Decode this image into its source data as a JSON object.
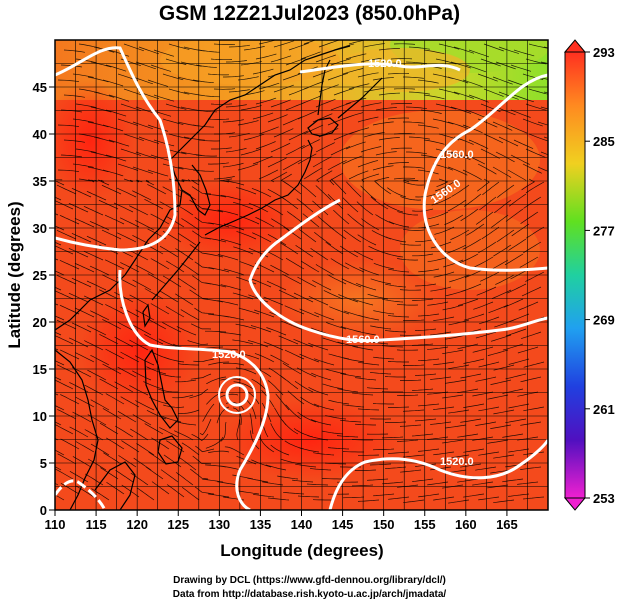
{
  "title": "GSM 12Z21Jul2023 (850.0hPa)",
  "x_axis": {
    "label": "Longitude (degrees)",
    "ticks": [
      "110",
      "115",
      "120",
      "125",
      "130",
      "135",
      "140",
      "145",
      "150",
      "155",
      "160",
      "165"
    ],
    "range": [
      110,
      170
    ]
  },
  "y_axis": {
    "label": "Latitude  (degrees)",
    "ticks": [
      "0",
      "5",
      "10",
      "15",
      "20",
      "25",
      "30",
      "35",
      "40",
      "45"
    ],
    "range": [
      0,
      50
    ]
  },
  "colorbar": {
    "ticks": [
      "293",
      "285",
      "277",
      "269",
      "261",
      "253"
    ],
    "range": [
      253,
      293
    ]
  },
  "contours": {
    "labels": [
      "1520.0",
      "1560.0",
      "1560.0",
      "1520.0",
      "1560.0",
      "1520.0"
    ]
  },
  "credits": {
    "line1": "Drawing by DCL (https://www.gfd-dennou.org/library/dcl/)",
    "line2": "Data from http://database.rish.kyoto-u.ac.jp/arch/jmadata/"
  },
  "colors": {
    "field_warm": "#f44a1c",
    "field_hot": "#ff2a10",
    "field_orange": "#f8841e",
    "field_yellow": "#f0c22a",
    "field_green": "#8ee02a",
    "contour": "#ffffff",
    "streamline": "#000000"
  }
}
